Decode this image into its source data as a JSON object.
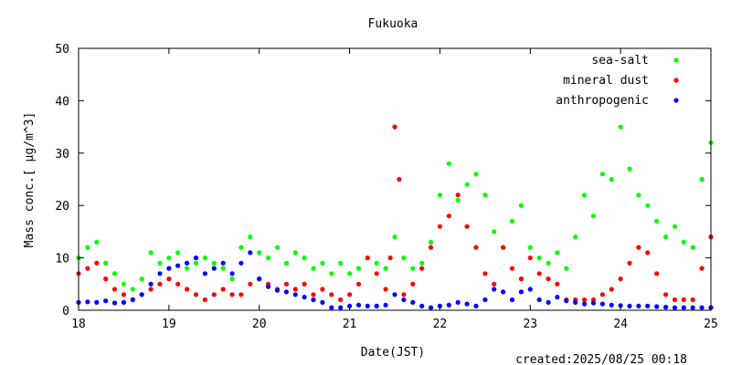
{
  "chart_data": {
    "type": "scatter",
    "title": "Fukuoka",
    "xlabel": "Date(JST)",
    "ylabel": "Mass conc.[ μg/m^3]",
    "xlim": [
      18,
      25
    ],
    "ylim": [
      0,
      50
    ],
    "xticks": [
      "18",
      "19",
      "20",
      "21",
      "22",
      "23",
      "24",
      "25"
    ],
    "yticks": [
      "0",
      "10",
      "20",
      "30",
      "40",
      "50"
    ],
    "grid": false,
    "legend_position": "top-right",
    "created": "created:2025/08/25 00:18",
    "series": [
      {
        "name": "sea-salt",
        "color": "#00ff00",
        "x": [
          18.0,
          18.1,
          18.2,
          18.3,
          18.4,
          18.5,
          18.6,
          18.7,
          18.8,
          18.9,
          19.0,
          19.1,
          19.2,
          19.3,
          19.4,
          19.5,
          19.6,
          19.7,
          19.8,
          19.9,
          20.0,
          20.1,
          20.2,
          20.3,
          20.4,
          20.5,
          20.6,
          20.7,
          20.8,
          20.9,
          21.0,
          21.1,
          21.2,
          21.3,
          21.4,
          21.5,
          21.6,
          21.7,
          21.8,
          21.9,
          22.0,
          22.1,
          22.2,
          22.3,
          22.4,
          22.5,
          22.6,
          22.7,
          22.8,
          22.9,
          23.0,
          23.1,
          23.2,
          23.3,
          23.4,
          23.5,
          23.6,
          23.7,
          23.8,
          23.9,
          24.0,
          24.1,
          24.2,
          24.3,
          24.4,
          24.5,
          24.6,
          24.7,
          24.8,
          24.9,
          25.0
        ],
        "y": [
          10,
          12,
          13,
          9,
          7,
          5,
          4,
          6,
          11,
          9,
          10,
          11,
          8,
          9,
          10,
          9,
          8,
          6,
          12,
          14,
          11,
          10,
          12,
          9,
          11,
          10,
          8,
          9,
          7,
          9,
          7,
          8,
          10,
          9,
          8,
          14,
          10,
          8,
          9,
          13,
          22,
          28,
          21,
          24,
          26,
          22,
          15,
          12,
          17,
          20,
          12,
          10,
          9,
          11,
          8,
          14,
          22,
          18,
          26,
          25,
          35,
          27,
          22,
          20,
          17,
          14,
          16,
          13,
          12,
          25,
          32
        ]
      },
      {
        "name": "mineral dust",
        "color": "#ff0000",
        "x": [
          18.0,
          18.1,
          18.2,
          18.3,
          18.4,
          18.5,
          18.6,
          18.7,
          18.8,
          18.9,
          19.0,
          19.1,
          19.2,
          19.3,
          19.4,
          19.5,
          19.6,
          19.7,
          19.8,
          19.9,
          20.0,
          20.1,
          20.2,
          20.3,
          20.4,
          20.5,
          20.6,
          20.7,
          20.8,
          20.9,
          21.0,
          21.1,
          21.2,
          21.3,
          21.4,
          21.45,
          21.5,
          21.55,
          21.6,
          21.7,
          21.8,
          21.9,
          22.0,
          22.1,
          22.2,
          22.3,
          22.4,
          22.5,
          22.6,
          22.7,
          22.8,
          22.9,
          23.0,
          23.1,
          23.2,
          23.3,
          23.4,
          23.5,
          23.6,
          23.7,
          23.8,
          23.9,
          24.0,
          24.1,
          24.2,
          24.3,
          24.4,
          24.5,
          24.6,
          24.7,
          24.8,
          24.9,
          25.0
        ],
        "y": [
          7,
          8,
          9,
          6,
          4,
          3,
          2,
          3,
          4,
          5,
          6,
          5,
          4,
          3,
          2,
          3,
          4,
          3,
          3,
          5,
          6,
          5,
          4,
          5,
          4,
          5,
          3,
          4,
          3,
          2,
          3,
          5,
          10,
          7,
          4,
          10,
          35,
          25,
          3,
          5,
          8,
          12,
          16,
          18,
          22,
          16,
          12,
          7,
          5,
          12,
          8,
          6,
          10,
          7,
          6,
          5,
          2,
          2,
          2,
          2,
          3,
          4,
          6,
          9,
          12,
          11,
          7,
          3,
          2,
          2,
          2,
          8,
          14
        ]
      },
      {
        "name": "anthropogenic",
        "color": "#0000ff",
        "x": [
          18.0,
          18.1,
          18.2,
          18.3,
          18.4,
          18.5,
          18.6,
          18.7,
          18.8,
          18.9,
          19.0,
          19.1,
          19.2,
          19.3,
          19.4,
          19.5,
          19.6,
          19.7,
          19.8,
          19.9,
          20.0,
          20.1,
          20.2,
          20.3,
          20.4,
          20.5,
          20.6,
          20.7,
          20.8,
          20.9,
          21.0,
          21.1,
          21.2,
          21.3,
          21.4,
          21.5,
          21.6,
          21.7,
          21.8,
          21.9,
          22.0,
          22.1,
          22.2,
          22.3,
          22.4,
          22.5,
          22.6,
          22.7,
          22.8,
          22.9,
          23.0,
          23.1,
          23.2,
          23.3,
          23.4,
          23.5,
          23.6,
          23.7,
          23.8,
          23.9,
          24.0,
          24.1,
          24.2,
          24.3,
          24.4,
          24.5,
          24.6,
          24.7,
          24.8,
          24.9,
          25.0
        ],
        "y": [
          1.5,
          1.6,
          1.5,
          1.8,
          1.4,
          1.5,
          2.0,
          3.0,
          5.0,
          7.0,
          8.0,
          8.5,
          9.0,
          10.0,
          7.0,
          8.0,
          9.0,
          7.0,
          9.0,
          11.0,
          6.0,
          4.5,
          3.8,
          3.5,
          3.0,
          2.5,
          2.0,
          1.5,
          0.5,
          0.5,
          0.8,
          1.0,
          0.8,
          0.8,
          1.0,
          3.0,
          2.0,
          1.5,
          0.8,
          0.5,
          0.8,
          1.0,
          1.5,
          1.2,
          0.8,
          2.0,
          4.0,
          3.5,
          2.0,
          3.5,
          4.0,
          2.0,
          1.5,
          2.5,
          1.8,
          1.5,
          1.2,
          1.4,
          1.2,
          1.0,
          0.9,
          0.8,
          0.8,
          0.8,
          0.7,
          0.6,
          0.5,
          0.5,
          0.5,
          0.5,
          0.5
        ]
      }
    ]
  }
}
